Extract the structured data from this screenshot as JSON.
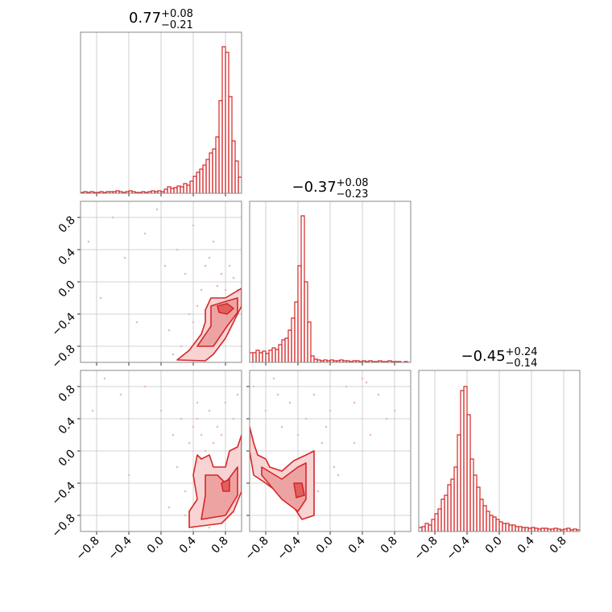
{
  "chart_data": [
    {
      "type": "histogram",
      "title": {
        "value": "0.77",
        "upper": "+0.08",
        "lower": "−0.21"
      },
      "color": "#d62728",
      "grid": true,
      "xlim": [
        -1,
        1
      ],
      "ylim": [
        0,
        200
      ],
      "xticks": [
        -0.8,
        -0.4,
        0,
        0.4,
        0.8
      ],
      "show_xtick_labels": false,
      "bins": [
        -1,
        -0.96,
        -0.92,
        -0.88,
        -0.84,
        -0.8,
        -0.76,
        -0.72,
        -0.68,
        -0.64,
        -0.6,
        -0.56,
        -0.52,
        -0.48,
        -0.44,
        -0.4,
        -0.36,
        -0.32,
        -0.28,
        -0.24,
        -0.2,
        -0.16,
        -0.12,
        -0.08,
        -0.04,
        0,
        0.04,
        0.08,
        0.12,
        0.16,
        0.2,
        0.24,
        0.28,
        0.32,
        0.36,
        0.4,
        0.44,
        0.48,
        0.52,
        0.56,
        0.6,
        0.64,
        0.68,
        0.72,
        0.76,
        0.8,
        0.84,
        0.88,
        0.92,
        0.96,
        1
      ],
      "counts": [
        1,
        2,
        1,
        2,
        1,
        1,
        2,
        1,
        2,
        2,
        2,
        3,
        2,
        1,
        2,
        3,
        2,
        1,
        1,
        2,
        1,
        2,
        3,
        2,
        3,
        2,
        5,
        8,
        6,
        7,
        9,
        8,
        12,
        10,
        15,
        21,
        26,
        30,
        35,
        42,
        50,
        55,
        70,
        115,
        182,
        175,
        120,
        65,
        40,
        20
      ]
    },
    {
      "type": "scatter",
      "color": "#d62728",
      "point_color": "#f2b8b8",
      "grid": true,
      "xlim": [
        -1,
        1
      ],
      "ylim": [
        -1,
        1
      ],
      "xticks": [
        -0.8,
        -0.4,
        0,
        0.4,
        0.8
      ],
      "show_xtick_labels": false,
      "yticks": [
        {
          "value": -0.8,
          "label": "−0.8"
        },
        {
          "value": -0.4,
          "label": "−0.4"
        },
        {
          "value": 0,
          "label": "0.0"
        },
        0.4,
        0.8
      ],
      "show_ytick_labels": true,
      "points": {
        "x": [
          -0.9,
          -0.75,
          -0.6,
          -0.45,
          -0.3,
          -0.2,
          -0.05,
          0.05,
          0.1,
          0.2,
          0.25,
          0.3,
          0.35,
          0.4,
          0.45,
          0.5,
          0.55,
          0.6,
          0.65,
          0.7,
          0.75,
          0.85,
          0.9,
          0.95,
          0.15,
          0.4,
          0.6,
          0.8
        ],
        "y": [
          0.5,
          -0.2,
          0.8,
          0.3,
          -0.5,
          0.6,
          0.9,
          0.2,
          -0.6,
          0.4,
          -0.8,
          0.1,
          -0.4,
          0.7,
          -0.3,
          -0.1,
          0.2,
          0.3,
          0.5,
          -0.05,
          0.1,
          0.2,
          0.05,
          -0.1,
          -0.9,
          -0.5,
          -0.6,
          -0.1
        ]
      },
      "contours": [
        {
          "fill": "#f8d3d3",
          "x": [
            0.2,
            0.35,
            0.5,
            0.55,
            0.55,
            0.62,
            0.8,
            1,
            1,
            0.9,
            0.8,
            0.65,
            0.55
          ],
          "y": [
            -0.97,
            -0.85,
            -0.65,
            -0.5,
            -0.35,
            -0.2,
            -0.2,
            -0.08,
            -0.3,
            -0.5,
            -0.7,
            -0.9,
            -0.98
          ]
        },
        {
          "fill": "#eea3a3",
          "x": [
            0.45,
            0.62,
            0.62,
            0.78,
            0.95,
            0.95,
            0.82,
            0.65
          ],
          "y": [
            -0.8,
            -0.55,
            -0.3,
            -0.25,
            -0.2,
            -0.38,
            -0.55,
            -0.8
          ]
        },
        {
          "fill": "#e06060",
          "x": [
            0.7,
            0.82,
            0.9,
            0.82,
            0.72
          ],
          "y": [
            -0.3,
            -0.27,
            -0.33,
            -0.4,
            -0.38
          ]
        }
      ]
    },
    {
      "type": "histogram",
      "title": {
        "value": "−0.37",
        "upper": "+0.08",
        "lower": "−0.23"
      },
      "color": "#d62728",
      "grid": true,
      "xlim": [
        -1,
        1
      ],
      "ylim": [
        0,
        200
      ],
      "xticks": [
        -0.8,
        -0.4,
        0,
        0.4,
        0.8
      ],
      "show_xtick_labels": false,
      "bins": [
        -1,
        -0.96,
        -0.92,
        -0.88,
        -0.84,
        -0.8,
        -0.76,
        -0.72,
        -0.68,
        -0.64,
        -0.6,
        -0.56,
        -0.52,
        -0.48,
        -0.44,
        -0.4,
        -0.36,
        -0.32,
        -0.28,
        -0.24,
        -0.2,
        -0.16,
        -0.12,
        -0.08,
        -0.04,
        0,
        0.04,
        0.08,
        0.12,
        0.16,
        0.2,
        0.24,
        0.28,
        0.32,
        0.36,
        0.4,
        0.44,
        0.48,
        0.52,
        0.56,
        0.6,
        0.64,
        0.68,
        0.72,
        0.76,
        0.8,
        0.84,
        0.88,
        0.92,
        0.96,
        1
      ],
      "counts": [
        12,
        12,
        15,
        12,
        14,
        11,
        15,
        18,
        16,
        22,
        28,
        30,
        40,
        55,
        75,
        120,
        182,
        100,
        50,
        8,
        4,
        3,
        2,
        3,
        2,
        3,
        2,
        2,
        3,
        2,
        2,
        1,
        2,
        2,
        1,
        2,
        1,
        2,
        1,
        1,
        2,
        1,
        1,
        2,
        1,
        1,
        1,
        0,
        1,
        0
      ]
    },
    {
      "type": "scatter",
      "color": "#d62728",
      "point_color": "#f2b8b8",
      "grid": true,
      "xlim": [
        -1,
        1
      ],
      "ylim": [
        -1,
        1
      ],
      "xticks": [
        {
          "value": -0.8,
          "label": "−0.8"
        },
        {
          "value": -0.4,
          "label": "−0.4"
        },
        {
          "value": 0,
          "label": "0.0"
        },
        0.4,
        0.8
      ],
      "show_xtick_labels": true,
      "yticks": [
        {
          "value": -0.8,
          "label": "−0.8"
        },
        {
          "value": -0.4,
          "label": "−0.4"
        },
        {
          "value": 0,
          "label": "0.0"
        },
        0.4,
        0.8
      ],
      "show_ytick_labels": true,
      "points": {
        "x": [
          -0.85,
          -0.7,
          -0.5,
          -0.4,
          -0.2,
          0,
          0.1,
          0.15,
          0.25,
          0.3,
          0.35,
          0.4,
          0.45,
          0.5,
          0.55,
          0.6,
          0.65,
          0.7,
          0.75,
          0.8,
          0.9,
          0.95,
          0.3,
          0.55,
          0.2,
          0.6,
          0.45
        ],
        "y": [
          0.5,
          0.9,
          0.7,
          -0.3,
          0.8,
          0.5,
          -0.7,
          0.2,
          0.4,
          -0.8,
          0.1,
          0.3,
          0.6,
          0.2,
          -0.9,
          0.5,
          0.1,
          0.3,
          0.2,
          0.6,
          0.4,
          0.7,
          -0.5,
          0,
          -0.2,
          -0.95,
          0.4
        ]
      },
      "contours": [
        {
          "fill": "#f8d3d3",
          "x": [
            0.35,
            0.35,
            0.45,
            0.4,
            0.45,
            0.5,
            0.6,
            0.65,
            0.8,
            0.85,
            0.95,
            1,
            1,
            0.9,
            0.75
          ],
          "y": [
            -0.95,
            -0.75,
            -0.6,
            -0.3,
            -0.05,
            -0.1,
            -0.05,
            -0.2,
            -0.2,
            0,
            0.05,
            0.2,
            -0.5,
            -0.75,
            -0.9
          ]
        },
        {
          "fill": "#eea3a3",
          "x": [
            0.5,
            0.55,
            0.55,
            0.7,
            0.8,
            0.95,
            0.95,
            0.8
          ],
          "y": [
            -0.85,
            -0.55,
            -0.3,
            -0.3,
            -0.4,
            -0.2,
            -0.55,
            -0.8
          ]
        },
        {
          "fill": "#e06060",
          "x": [
            0.75,
            0.85,
            0.85,
            0.77
          ],
          "y": [
            -0.4,
            -0.35,
            -0.5,
            -0.5
          ]
        }
      ]
    },
    {
      "type": "scatter",
      "color": "#d62728",
      "point_color": "#f2b8b8",
      "grid": true,
      "xlim": [
        -1,
        1
      ],
      "ylim": [
        -1,
        1
      ],
      "xticks": [
        {
          "value": -0.8,
          "label": "−0.8"
        },
        {
          "value": -0.4,
          "label": "−0.4"
        },
        {
          "value": 0,
          "label": "0.0"
        },
        0.4,
        0.8
      ],
      "show_xtick_labels": true,
      "yticks": [
        -0.8,
        -0.4,
        0,
        0.4,
        0.8
      ],
      "show_ytick_labels": false,
      "points": {
        "x": [
          -0.95,
          -0.8,
          -0.7,
          -0.6,
          -0.5,
          -0.4,
          -0.3,
          -0.2,
          -0.1,
          0,
          0.1,
          0.2,
          0.3,
          0.4,
          0.5,
          0.6,
          0.7,
          0.8,
          -0.15,
          -0.25,
          0.05,
          -0.05,
          0.45,
          0.3,
          -0.65
        ],
        "y": [
          0.8,
          0.5,
          0.9,
          0.3,
          0.6,
          0.2,
          0.4,
          0.7,
          0.1,
          0.5,
          -0.3,
          0.8,
          0.6,
          0.9,
          0.2,
          0.7,
          0.4,
          0.5,
          -0.5,
          -0.7,
          -0.2,
          0.3,
          0.85,
          0.1,
          0.7
        ]
      },
      "contours": [
        {
          "fill": "#f8d3d3",
          "x": [
            -1,
            -0.95,
            -0.9,
            -0.8,
            -0.75,
            -0.6,
            -0.45,
            -0.3,
            -0.2,
            -0.2,
            -0.2,
            -0.35,
            -0.45,
            -0.6,
            -0.8,
            -0.95,
            -1
          ],
          "y": [
            0.3,
            0.1,
            -0.05,
            -0.1,
            -0.2,
            -0.25,
            -0.12,
            -0.05,
            0,
            -0.4,
            -0.8,
            -0.85,
            -0.7,
            -0.55,
            -0.4,
            -0.3,
            0
          ]
        },
        {
          "fill": "#eea3a3",
          "x": [
            -0.85,
            -0.6,
            -0.4,
            -0.3,
            -0.3,
            -0.4,
            -0.6,
            -0.85
          ],
          "y": [
            -0.2,
            -0.35,
            -0.2,
            -0.15,
            -0.6,
            -0.75,
            -0.6,
            -0.3
          ]
        },
        {
          "fill": "#e06060",
          "x": [
            -0.45,
            -0.35,
            -0.32,
            -0.42
          ],
          "y": [
            -0.4,
            -0.4,
            -0.55,
            -0.58
          ]
        }
      ]
    },
    {
      "type": "histogram",
      "title": {
        "value": "−0.45",
        "upper": "+0.24",
        "lower": "−0.14"
      },
      "color": "#d62728",
      "grid": true,
      "xlim": [
        -1,
        1
      ],
      "ylim": [
        0,
        200
      ],
      "xticks": [
        {
          "value": -0.8,
          "label": "−0.8"
        },
        {
          "value": -0.4,
          "label": "−0.4"
        },
        {
          "value": 0,
          "label": "0.0"
        },
        0.4,
        0.8
      ],
      "show_xtick_labels": true,
      "bins": [
        -1,
        -0.96,
        -0.92,
        -0.88,
        -0.84,
        -0.8,
        -0.76,
        -0.72,
        -0.68,
        -0.64,
        -0.6,
        -0.56,
        -0.52,
        -0.48,
        -0.44,
        -0.4,
        -0.36,
        -0.32,
        -0.28,
        -0.24,
        -0.2,
        -0.16,
        -0.12,
        -0.08,
        -0.04,
        0,
        0.04,
        0.08,
        0.12,
        0.16,
        0.2,
        0.24,
        0.28,
        0.32,
        0.36,
        0.4,
        0.44,
        0.48,
        0.52,
        0.56,
        0.6,
        0.64,
        0.68,
        0.72,
        0.76,
        0.8,
        0.84,
        0.88,
        0.92,
        0.96,
        1
      ],
      "counts": [
        5,
        6,
        10,
        8,
        15,
        22,
        28,
        40,
        45,
        58,
        65,
        80,
        120,
        175,
        180,
        145,
        90,
        70,
        55,
        40,
        32,
        25,
        20,
        18,
        15,
        12,
        10,
        10,
        8,
        8,
        6,
        6,
        5,
        5,
        4,
        5,
        4,
        3,
        4,
        4,
        3,
        3,
        4,
        3,
        2,
        3,
        4,
        2,
        3,
        2
      ]
    }
  ]
}
